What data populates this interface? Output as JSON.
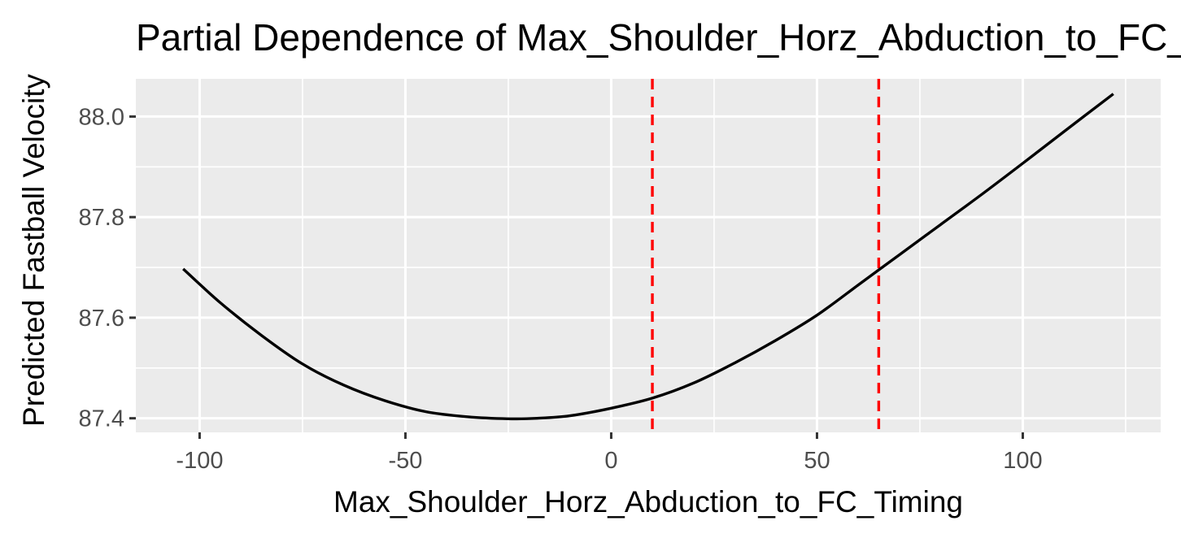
{
  "chart_data": {
    "type": "line",
    "title": "Partial Dependence of Max_Shoulder_Horz_Abduction_to_FC_Timing",
    "xlabel": "Max_Shoulder_Horz_Abduction_to_FC_Timing",
    "ylabel": "Predicted Fastball Velocity",
    "xlim": [
      -115.5,
      133.5
    ],
    "ylim": [
      87.372,
      88.075
    ],
    "x_ticks": [
      -100,
      -50,
      0,
      50,
      100
    ],
    "x_tick_labels": [
      "-100",
      "-50",
      "0",
      "50",
      "100"
    ],
    "y_ticks": [
      87.4,
      87.6,
      87.8,
      88.0
    ],
    "y_tick_labels": [
      "87.4",
      "87.6",
      "87.8",
      "88.0"
    ],
    "grid": true,
    "background": "#ebebeb",
    "series": [
      {
        "color": "#000000",
        "x": [
          -104,
          -95,
          -85,
          -75,
          -65,
          -55,
          -45,
          -35,
          -25,
          -18,
          -10,
          0,
          10,
          20,
          30,
          40,
          50,
          60,
          65,
          70,
          80,
          90,
          100,
          110,
          122
        ],
        "y": [
          87.697,
          87.63,
          87.565,
          87.508,
          87.466,
          87.435,
          87.413,
          87.403,
          87.399,
          87.4,
          87.405,
          87.42,
          87.44,
          87.47,
          87.51,
          87.555,
          87.605,
          87.665,
          87.695,
          87.725,
          87.785,
          87.845,
          87.907,
          87.97,
          88.045
        ]
      }
    ],
    "reference_lines": [
      {
        "axis": "x",
        "value": 10,
        "color": "#ff0000",
        "style": "dashed"
      },
      {
        "axis": "x",
        "value": 65,
        "color": "#ff0000",
        "style": "dashed"
      }
    ]
  }
}
